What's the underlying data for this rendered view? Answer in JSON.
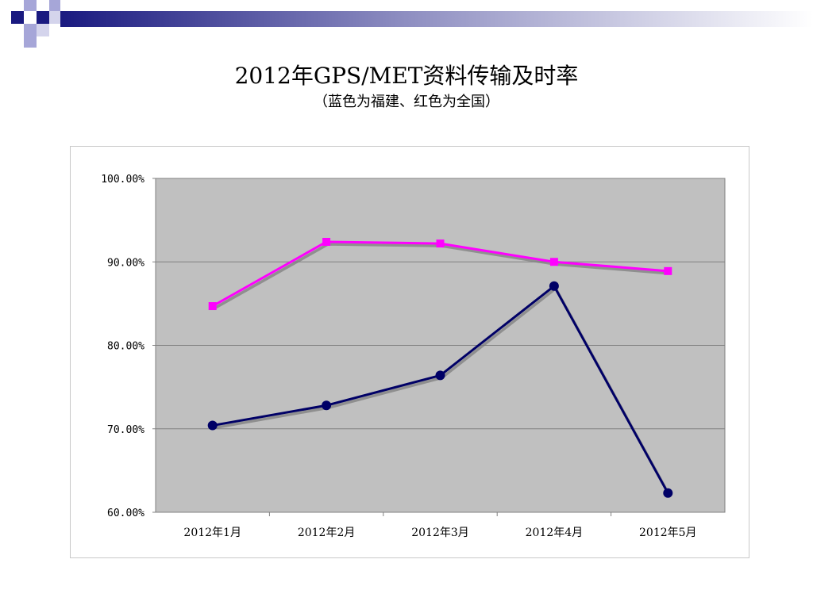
{
  "slide": {
    "title": "2012年GPS/MET资料传输及时率",
    "subtitle": "（蓝色为福建、红色为全国）"
  },
  "colors": {
    "fujian": "#000066",
    "national": "#ff00ff",
    "plot_bg": "#c0c0c0",
    "accent_dark": "#1a1a80",
    "accent_light": "#a6a6d8"
  },
  "chart_data": {
    "type": "line",
    "title": "2012年GPS/MET资料传输及时率",
    "subtitle": "（蓝色为福建、红色为全国）",
    "categories": [
      "2012年1月",
      "2012年2月",
      "2012年3月",
      "2012年4月",
      "2012年5月"
    ],
    "ylim": [
      0.6,
      1.0
    ],
    "yticks": [
      "100.00%",
      "90.00%",
      "80.00%",
      "70.00%",
      "60.00%"
    ],
    "grid": true,
    "legend": "none",
    "series": [
      {
        "color": "#ff00ff",
        "marker": "square",
        "values": [
          0.847,
          0.924,
          0.922,
          0.9,
          0.889
        ]
      },
      {
        "color": "#000066",
        "marker": "circle",
        "values": [
          0.704,
          0.728,
          0.764,
          0.871,
          0.623
        ]
      }
    ]
  }
}
